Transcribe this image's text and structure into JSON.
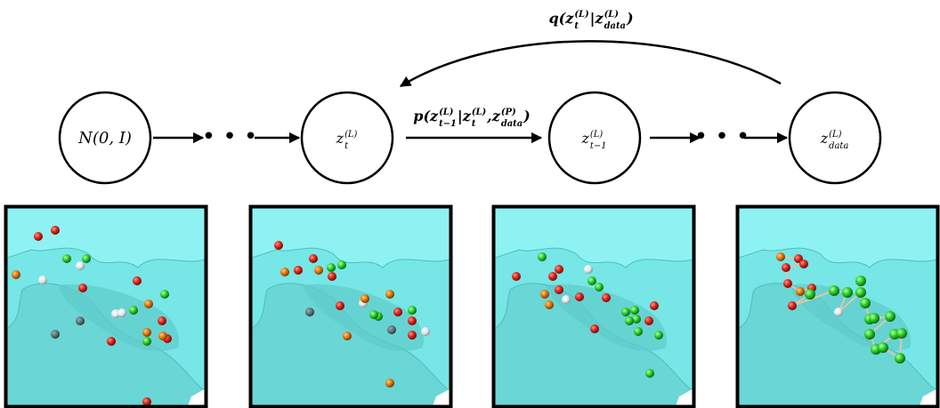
{
  "nodes": [
    {
      "label": [
        {
          "t": "N(0, I)"
        }
      ]
    },
    {
      "label": [
        {
          "t": "z",
          "sup": "(L)",
          "sub": "t"
        }
      ]
    },
    {
      "label": [
        {
          "t": "z",
          "sup": "(L)",
          "sub": "t−1"
        }
      ]
    },
    {
      "label": [
        {
          "t": "z",
          "sup": "(L)",
          "sub": "data"
        }
      ]
    }
  ],
  "ellipses": [
    "• • •",
    "• • •"
  ],
  "edges": [
    {
      "label": [
        {
          "t": "p("
        },
        {
          "t": "z",
          "sup": "(L)",
          "sub": "t−1"
        },
        {
          "t": "|"
        },
        {
          "t": "z",
          "sup": "(L)",
          "sub": "t"
        },
        {
          "t": ", "
        },
        {
          "t": "z",
          "sup": "(P)",
          "sub": "data"
        },
        {
          "t": ")"
        }
      ]
    },
    {
      "label": [
        {
          "t": "q("
        },
        {
          "t": "z",
          "sup": "(L)",
          "sub": "t"
        },
        {
          "t": "|"
        },
        {
          "t": "z",
          "sup": "(L)",
          "sub": "data"
        },
        {
          "t": ")"
        }
      ]
    }
  ]
}
